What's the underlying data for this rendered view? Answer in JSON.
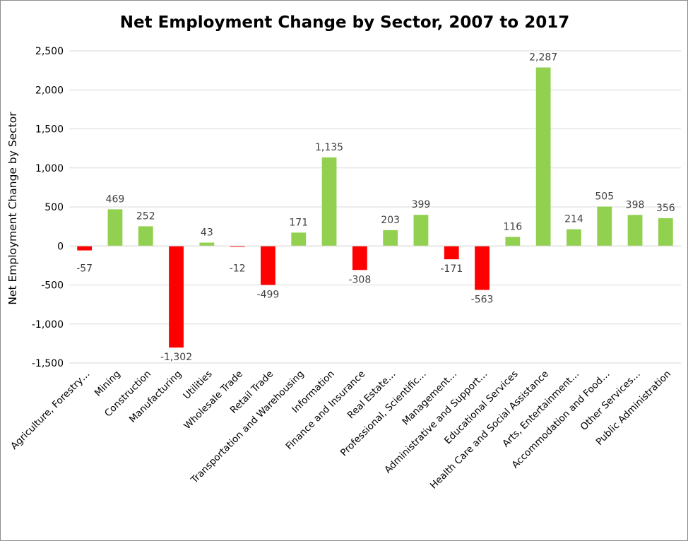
{
  "chart_data": {
    "type": "bar",
    "title": "Net Employment Change by Sector, 2007 to 2017",
    "xlabel": "",
    "ylabel": "Net Employment Change by Sector",
    "ylim": [
      -1500,
      2500
    ],
    "yticks": [
      2500,
      2000,
      1500,
      1000,
      500,
      0,
      -500,
      -1000,
      -1500
    ],
    "ytick_labels": [
      "2,500",
      "2,000",
      "1,500",
      "1,000",
      "500",
      "0",
      "-500",
      "-1,000",
      "-1,500"
    ],
    "grid": true,
    "legend": "none",
    "categories": [
      "Agriculture, Forestry…",
      "Mining",
      "Construction",
      "Manufacturing",
      "Utilities",
      "Wholesale Trade",
      "Retail Trade",
      "Transportation and Warehousing",
      "Information",
      "Finance and Insurance",
      "Real Estate…",
      "Professional, Scientific…",
      "Management…",
      "Administrative and Support…",
      "Educational Services",
      "Health Care and Social Assistance",
      "Arts, Entertainment…",
      "Accommodation and Food…",
      "Other Services…",
      "Public Administration"
    ],
    "values": [
      -57,
      469,
      252,
      -1302,
      43,
      -12,
      -499,
      171,
      1135,
      -308,
      203,
      399,
      -171,
      -563,
      116,
      2287,
      214,
      505,
      398,
      356
    ],
    "data_labels": [
      "-57",
      "469",
      "252",
      "-1,302",
      "43",
      "-12",
      "-499",
      "171",
      "1,135",
      "-308",
      "203",
      "399",
      "-171",
      "-563",
      "116",
      "2,287",
      "214",
      "505",
      "398",
      "356"
    ],
    "colors": {
      "positive": "#92d050",
      "negative": "#ff0000",
      "grid": "#d9d9d9"
    }
  }
}
